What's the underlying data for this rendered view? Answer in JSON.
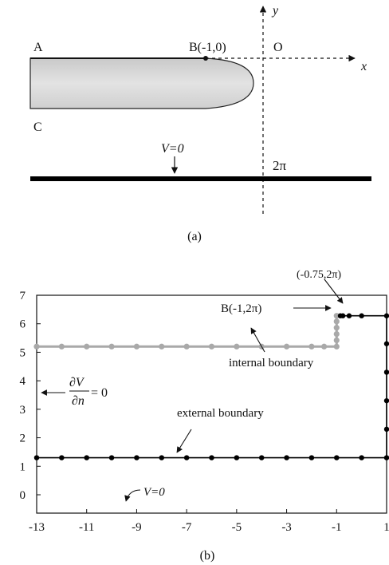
{
  "panel_a": {
    "point_a": "A",
    "point_b": "B(-1,0)",
    "point_o": "O",
    "point_c": "C",
    "axis_x": "x",
    "axis_y": "y",
    "v_label": "V=0",
    "two_pi": "2π",
    "caption": "(a)",
    "colors": {
      "electrode_fill": "#d4d4d4",
      "ground": "#000000"
    }
  },
  "panel_b": {
    "caption": "(b)",
    "label_corner": "(-0.75,2π)",
    "label_b": "B(-1,2π)",
    "label_internal": "internal boundary",
    "label_external": "external boundary",
    "label_v0": "V=0",
    "label_bc_num": "∂V",
    "label_bc_den": "∂n",
    "label_bc_eq": "= 0",
    "colors": {
      "internal": "#a9a9a9",
      "external": "#000000"
    },
    "chart_data": {
      "type": "scatter",
      "xlim": [
        -13,
        1
      ],
      "ylim": [
        0,
        7
      ],
      "x_ticks": [
        -13,
        -11,
        -9,
        -7,
        -5,
        -3,
        -1,
        1
      ],
      "y_ticks": [
        0,
        1,
        2,
        3,
        4,
        5,
        6,
        7
      ],
      "series": [
        {
          "name": "internal boundary",
          "color": "#a9a9a9",
          "points": [
            [
              -13,
              5.2
            ],
            [
              -12,
              5.2
            ],
            [
              -11,
              5.2
            ],
            [
              -10,
              5.2
            ],
            [
              -9,
              5.2
            ],
            [
              -8,
              5.2
            ],
            [
              -7,
              5.2
            ],
            [
              -6,
              5.2
            ],
            [
              -5,
              5.2
            ],
            [
              -4,
              5.2
            ],
            [
              -3,
              5.2
            ],
            [
              -2,
              5.2
            ],
            [
              -1.5,
              5.2
            ],
            [
              -1,
              5.2
            ],
            [
              -1,
              5.42
            ],
            [
              -1,
              5.64
            ],
            [
              -1,
              5.86
            ],
            [
              -1,
              6.08
            ],
            [
              -1,
              6.28
            ]
          ]
        },
        {
          "name": "external boundary",
          "color": "#000000",
          "points": [
            [
              -13,
              1.3
            ],
            [
              -12,
              1.3
            ],
            [
              -11,
              1.3
            ],
            [
              -10,
              1.3
            ],
            [
              -9,
              1.3
            ],
            [
              -8,
              1.3
            ],
            [
              -7,
              1.3
            ],
            [
              -6,
              1.3
            ],
            [
              -5,
              1.3
            ],
            [
              -4,
              1.3
            ],
            [
              -3,
              1.3
            ],
            [
              -2,
              1.3
            ],
            [
              -1,
              1.3
            ],
            [
              0,
              1.3
            ],
            [
              1,
              1.3
            ],
            [
              1,
              2.3
            ],
            [
              1,
              3.3
            ],
            [
              1,
              4.3
            ],
            [
              1,
              5.3
            ],
            [
              1,
              6.28
            ],
            [
              -0.85,
              6.28
            ],
            [
              -0.75,
              6.28
            ],
            [
              -0.5,
              6.28
            ],
            [
              0,
              6.28
            ]
          ]
        }
      ]
    }
  }
}
